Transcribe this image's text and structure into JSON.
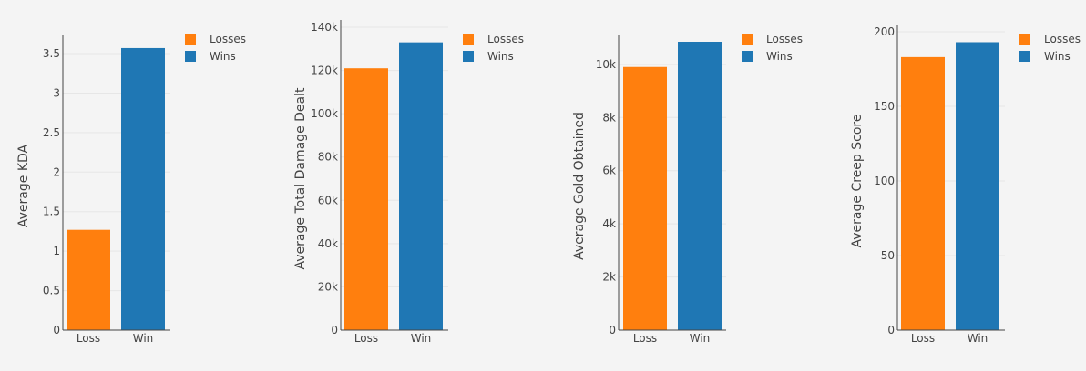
{
  "chart_data": [
    {
      "type": "bar",
      "categories": [
        "Loss",
        "Win"
      ],
      "series": [
        {
          "name": "Losses",
          "values": [
            1.27,
            null
          ]
        },
        {
          "name": "Wins",
          "values": [
            null,
            3.57
          ]
        }
      ],
      "title": "",
      "xlabel": "",
      "ylabel": "Average KDA",
      "ylim": [
        0,
        3.65
      ],
      "yticks": [
        0,
        0.5,
        1,
        1.5,
        2,
        2.5,
        3,
        3.5
      ],
      "ytick_labels": [
        "0",
        "0.5",
        "1",
        "1.5",
        "2",
        "2.5",
        "3",
        "3.5"
      ],
      "grid": true,
      "legend": "top-right"
    },
    {
      "type": "bar",
      "categories": [
        "Loss",
        "Win"
      ],
      "series": [
        {
          "name": "Losses",
          "values": [
            121000,
            null
          ]
        },
        {
          "name": "Wins",
          "values": [
            null,
            133000
          ]
        }
      ],
      "title": "",
      "xlabel": "",
      "ylabel": "Average Total Damage Dealt",
      "ylim": [
        0,
        140000
      ],
      "yticks": [
        0,
        20000,
        40000,
        60000,
        80000,
        100000,
        120000,
        140000
      ],
      "ytick_labels": [
        "0",
        "20k",
        "40k",
        "60k",
        "80k",
        "100k",
        "120k",
        "140k"
      ],
      "grid": true,
      "legend": "top-right"
    },
    {
      "type": "bar",
      "categories": [
        "Loss",
        "Win"
      ],
      "series": [
        {
          "name": "Losses",
          "values": [
            9900,
            null
          ]
        },
        {
          "name": "Wins",
          "values": [
            null,
            10850
          ]
        }
      ],
      "title": "",
      "xlabel": "",
      "ylabel": "Average Gold Obtained",
      "ylim": [
        0,
        10850
      ],
      "yticks": [
        0,
        2000,
        4000,
        6000,
        8000,
        10000
      ],
      "ytick_labels": [
        "0",
        "2k",
        "4k",
        "6k",
        "8k",
        "10k"
      ],
      "grid": true,
      "legend": "top-right"
    },
    {
      "type": "bar",
      "categories": [
        "Loss",
        "Win"
      ],
      "series": [
        {
          "name": "Losses",
          "values": [
            183,
            null
          ]
        },
        {
          "name": "Wins",
          "values": [
            null,
            193
          ]
        }
      ],
      "title": "",
      "xlabel": "",
      "ylabel": "Average Creep Score",
      "ylim": [
        0,
        200
      ],
      "yticks": [
        0,
        50,
        100,
        150,
        200
      ],
      "ytick_labels": [
        "0",
        "50",
        "100",
        "150",
        "200"
      ],
      "grid": true,
      "legend": "top-right"
    }
  ],
  "colors": {
    "losses": "#ff7f0e",
    "wins": "#1f77b4",
    "background": "#f4f4f4",
    "grid": "#e6e6e6",
    "axis": "#444444"
  }
}
